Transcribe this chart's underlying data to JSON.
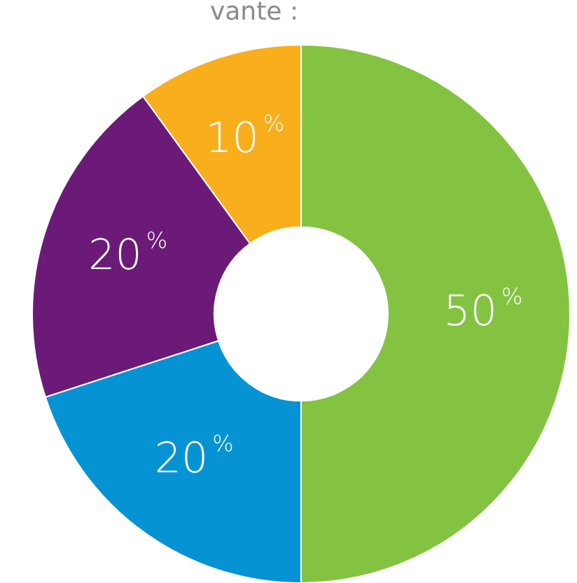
{
  "chart_data": {
    "type": "donut",
    "title": "vante :",
    "categories": [
      null,
      null,
      null,
      null
    ],
    "values": [
      50,
      20,
      20,
      10
    ],
    "colors": [
      "#84c341",
      "#0693d3",
      "#6b1b77",
      "#f9ae1b"
    ],
    "value_labels": [
      "50$^{%}$",
      "20$^{%}$",
      "20$^{%}$",
      "10$^{%}$"
    ]
  }
}
